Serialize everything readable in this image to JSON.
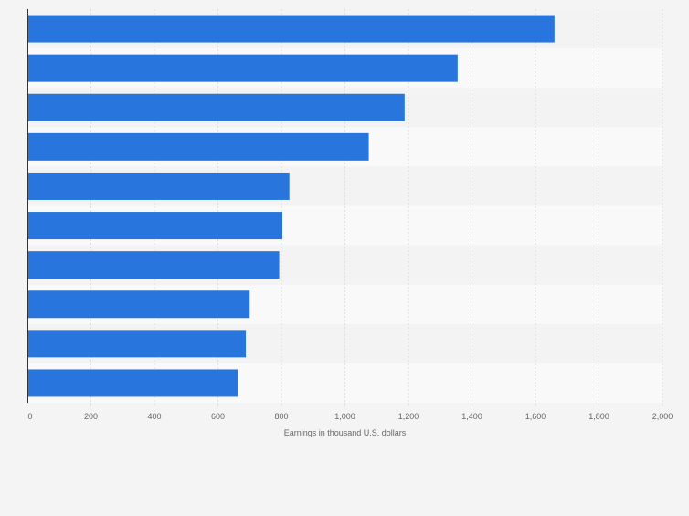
{
  "chart_data": {
    "type": "bar",
    "orientation": "horizontal",
    "title": "",
    "ylabel": "",
    "xlabel": "Earnings in thousand U.S. dollars",
    "categories": [
      "",
      "",
      "",
      "",
      "",
      "",
      "",
      "",
      "",
      ""
    ],
    "values": [
      1660,
      1355,
      1188,
      1075,
      825,
      803,
      793,
      700,
      688,
      663
    ],
    "xlim": [
      0,
      2000
    ],
    "ticks": [
      0,
      200,
      400,
      600,
      800,
      1000,
      1200,
      1400,
      1600,
      1800,
      2000
    ],
    "tick_labels": [
      "0",
      "200",
      "400",
      "600",
      "800",
      "1,000",
      "1,200",
      "1,400",
      "1,600",
      "1,800",
      "2,000"
    ],
    "grid": true,
    "colors": {
      "bar": "#2876dd",
      "band_light": "#f9f9fa",
      "band_dark": "#f3f3f4",
      "grid": "#dcdcdc",
      "axis": "#333333",
      "text": "#666666",
      "background": "#f4f4f5"
    }
  }
}
